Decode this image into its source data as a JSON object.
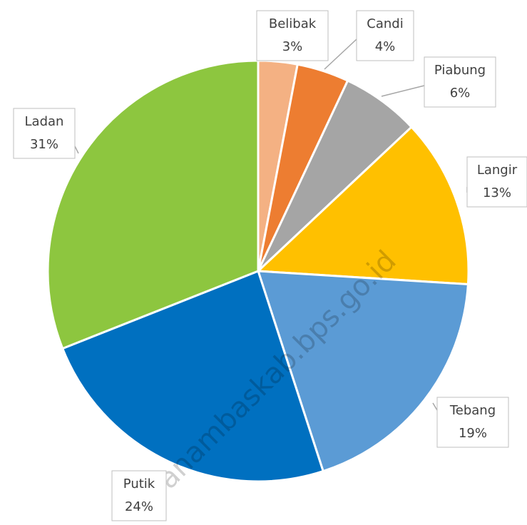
{
  "chart_data": {
    "type": "pie",
    "categories": [
      "Belibak",
      "Candi",
      "Piabung",
      "Langir",
      "Tebang",
      "Putik",
      "Ladan"
    ],
    "values": [
      3,
      4,
      6,
      13,
      19,
      24,
      31
    ],
    "value_labels": [
      "3%",
      "4%",
      "6%",
      "13%",
      "19%",
      "24%",
      "31%"
    ],
    "colors": [
      "#f4b183",
      "#ed7d31",
      "#a5a5a5",
      "#ffc000",
      "#5b9bd5",
      "#0070c0",
      "#8dc63f"
    ],
    "watermark": "anambaskab.bps.go.id"
  }
}
